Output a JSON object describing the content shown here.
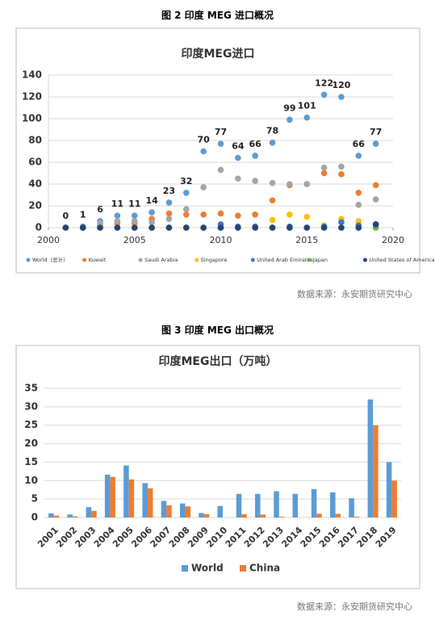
{
  "figures": [
    {
      "caption": "图 2  印度 MEG 进口概况",
      "source": "数据来源：永安期货研究中心"
    },
    {
      "caption": "图 3  印度 MEG 出口概况",
      "source": "数据来源：永安期货研究中心"
    }
  ],
  "chart_data": [
    {
      "type": "scatter",
      "title": "印度MEG进口",
      "x": [
        2001,
        2002,
        2003,
        2004,
        2005,
        2006,
        2007,
        2008,
        2009,
        2010,
        2011,
        2012,
        2013,
        2014,
        2015,
        2016,
        2017,
        2018,
        2019
      ],
      "xlim": [
        2000,
        2020
      ],
      "xticks": [
        2000,
        2005,
        2010,
        2015,
        2020
      ],
      "ylim": [
        0,
        140
      ],
      "yticks": [
        0,
        20,
        40,
        60,
        80,
        100,
        120,
        140
      ],
      "legend": "bottom",
      "series": [
        {
          "name": "World（总计）",
          "color": "#5b9bd5",
          "data_labels": true,
          "values": [
            0,
            1,
            6,
            11,
            11,
            14,
            23,
            32,
            70,
            77,
            64,
            66,
            78,
            99,
            101,
            122,
            120,
            66,
            77
          ]
        },
        {
          "name": "Kuwait",
          "color": "#ed7d31",
          "values": [
            0,
            0,
            2,
            4,
            4,
            8,
            13,
            12,
            12,
            13,
            11,
            12,
            25,
            39,
            40,
            50,
            49,
            32,
            39
          ]
        },
        {
          "name": "Saudi Arabia",
          "color": "#a5a5a5",
          "values": [
            0,
            0,
            4,
            6,
            6,
            5,
            8,
            17,
            37,
            53,
            45,
            43,
            41,
            40,
            40,
            55,
            56,
            21,
            26
          ]
        },
        {
          "name": "Singapore",
          "color": "#ffc000",
          "values": [
            0,
            0,
            0,
            0,
            0,
            0,
            0,
            0,
            0,
            0,
            0,
            0,
            7,
            12,
            10,
            2,
            8,
            6,
            0
          ]
        },
        {
          "name": "United Arab Emirates",
          "color": "#4472c4",
          "values": [
            0,
            0,
            0,
            0,
            0,
            0,
            0,
            0,
            0,
            3,
            1,
            1,
            0,
            1,
            0,
            1,
            5,
            2,
            3
          ]
        },
        {
          "name": "Japan",
          "color": "#70ad47",
          "values": [
            0,
            0,
            0,
            0,
            0,
            0,
            0,
            0,
            0,
            0,
            0,
            0,
            0,
            0,
            0,
            0,
            0,
            0,
            0
          ]
        },
        {
          "name": "United States of America",
          "color": "#264478",
          "values": [
            0,
            0,
            0,
            0,
            0,
            0,
            0,
            0,
            0,
            0,
            0,
            0,
            0,
            0,
            0,
            0,
            0,
            0,
            3
          ]
        }
      ]
    },
    {
      "type": "bar",
      "title": "印度MEG出口（万吨）",
      "categories": [
        "2001",
        "2002",
        "2003",
        "2004",
        "2005",
        "2006",
        "2007",
        "2008",
        "2009",
        "2010",
        "2011",
        "2012",
        "2013",
        "2014",
        "2015",
        "2016",
        "2017",
        "2018",
        "2019"
      ],
      "ylim": [
        0,
        35
      ],
      "yticks": [
        0,
        5,
        10,
        15,
        20,
        25,
        30,
        35
      ],
      "legend": "bottom",
      "series": [
        {
          "name": "World",
          "color": "#5b9bd5",
          "values": [
            1.1,
            0.8,
            2.8,
            11.6,
            14.1,
            9.3,
            4.5,
            3.8,
            1.2,
            3.1,
            6.4,
            6.4,
            7.1,
            6.4,
            7.7,
            6.8,
            5.2,
            32,
            15
          ]
        },
        {
          "name": "China",
          "color": "#ed7d31",
          "values": [
            0.5,
            0.3,
            1.8,
            11,
            10.3,
            7.9,
            3.3,
            3.0,
            0.9,
            0,
            0.9,
            0.8,
            0.2,
            0,
            1.0,
            1.0,
            0.2,
            25,
            10
          ]
        }
      ]
    }
  ]
}
